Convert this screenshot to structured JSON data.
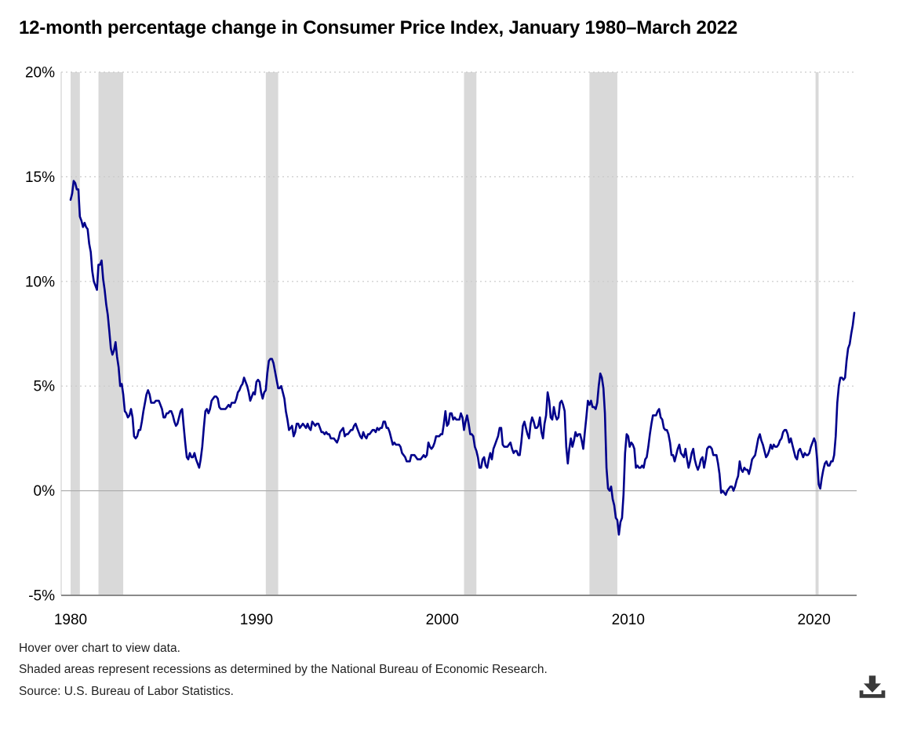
{
  "title": "12-month percentage change in Consumer Price Index, January 1980–March 2022",
  "notes": [
    "Hover over chart to view data.",
    "Shaded areas represent recessions as determined by the National Bureau of Economic Research.",
    "Source: U.S. Bureau of Labor Statistics."
  ],
  "colors": {
    "line": "#00008b",
    "recession": "#d9d9d9",
    "grid": "#c9c9c9",
    "zero_line": "#b0b0b0",
    "axis": "#8a8a8a",
    "text": "#000000",
    "icon": "#3a3a3a"
  },
  "chart_data": {
    "type": "line",
    "title": "12-month percentage change in Consumer Price Index, January 1980–March 2022",
    "start_year": 1980,
    "start_month": 1,
    "end_year": 2022,
    "end_month": 3,
    "ylim": [
      -5,
      20
    ],
    "unit": "percent",
    "grid": "dotted-horizontal",
    "legend_position": "none",
    "y_ticks": [
      {
        "label": "20%",
        "value": 20,
        "style": "dotted"
      },
      {
        "label": "15%",
        "value": 15,
        "style": "dotted"
      },
      {
        "label": "10%",
        "value": 10,
        "style": "dotted"
      },
      {
        "label": "5%",
        "value": 5,
        "style": "dotted"
      },
      {
        "label": "0%",
        "value": 0,
        "style": "solid"
      },
      {
        "label": "-5%",
        "value": -5,
        "style": "axis"
      }
    ],
    "x_ticks": [
      1980,
      1990,
      2000,
      2010,
      2020
    ],
    "recessions": [
      {
        "start": "1980-01",
        "end": "1980-07"
      },
      {
        "start": "1981-07",
        "end": "1982-11"
      },
      {
        "start": "1990-07",
        "end": "1991-03"
      },
      {
        "start": "2001-03",
        "end": "2001-11"
      },
      {
        "start": "2007-12",
        "end": "2009-06"
      },
      {
        "start": "2020-02",
        "end": "2020-04"
      }
    ],
    "series": [
      {
        "name": "12-month percent change, Consumer Price Index",
        "data": [
          {
            "year": 1980,
            "values": [
              13.9,
              14.2,
              14.8,
              14.7,
              14.4,
              14.4,
              13.1,
              12.9,
              12.6,
              12.8,
              12.6,
              12.5
            ]
          },
          {
            "year": 1981,
            "values": [
              11.8,
              11.4,
              10.5,
              10.0,
              9.8,
              9.6,
              10.8,
              10.8,
              11.0,
              10.1,
              9.6,
              8.9
            ]
          },
          {
            "year": 1982,
            "values": [
              8.4,
              7.6,
              6.8,
              6.5,
              6.7,
              7.1,
              6.4,
              5.9,
              5.0,
              5.1,
              4.6,
              3.8
            ]
          },
          {
            "year": 1983,
            "values": [
              3.7,
              3.5,
              3.6,
              3.9,
              3.5,
              2.6,
              2.5,
              2.6,
              2.9,
              2.9,
              3.3,
              3.8
            ]
          },
          {
            "year": 1984,
            "values": [
              4.2,
              4.6,
              4.8,
              4.6,
              4.2,
              4.2,
              4.2,
              4.3,
              4.3,
              4.3,
              4.1,
              3.9
            ]
          },
          {
            "year": 1985,
            "values": [
              3.5,
              3.5,
              3.7,
              3.7,
              3.8,
              3.8,
              3.6,
              3.3,
              3.1,
              3.2,
              3.5,
              3.8
            ]
          },
          {
            "year": 1986,
            "values": [
              3.9,
              3.1,
              2.3,
              1.6,
              1.5,
              1.8,
              1.6,
              1.6,
              1.8,
              1.5,
              1.3,
              1.1
            ]
          },
          {
            "year": 1987,
            "values": [
              1.5,
              2.1,
              3.0,
              3.8,
              3.9,
              3.7,
              3.9,
              4.3,
              4.4,
              4.5,
              4.5,
              4.4
            ]
          },
          {
            "year": 1988,
            "values": [
              4.0,
              3.9,
              3.9,
              3.9,
              3.9,
              4.0,
              4.1,
              4.0,
              4.2,
              4.2,
              4.2,
              4.4
            ]
          },
          {
            "year": 1989,
            "values": [
              4.7,
              4.8,
              5.0,
              5.1,
              5.4,
              5.2,
              5.0,
              4.7,
              4.3,
              4.5,
              4.7,
              4.6
            ]
          },
          {
            "year": 1990,
            "values": [
              5.2,
              5.3,
              5.2,
              4.7,
              4.4,
              4.7,
              4.8,
              5.6,
              6.2,
              6.3,
              6.3,
              6.1
            ]
          },
          {
            "year": 1991,
            "values": [
              5.7,
              5.3,
              4.9,
              4.9,
              5.0,
              4.7,
              4.4,
              3.8,
              3.4,
              2.9,
              3.0,
              3.1
            ]
          },
          {
            "year": 1992,
            "values": [
              2.6,
              2.8,
              3.2,
              3.2,
              3.0,
              3.1,
              3.2,
              3.1,
              3.0,
              3.2,
              3.0,
              2.9
            ]
          },
          {
            "year": 1993,
            "values": [
              3.3,
              3.2,
              3.1,
              3.2,
              3.2,
              3.0,
              2.8,
              2.8,
              2.7,
              2.8,
              2.7,
              2.7
            ]
          },
          {
            "year": 1994,
            "values": [
              2.5,
              2.5,
              2.5,
              2.4,
              2.3,
              2.5,
              2.8,
              2.9,
              3.0,
              2.6,
              2.7,
              2.7
            ]
          },
          {
            "year": 1995,
            "values": [
              2.8,
              2.9,
              2.9,
              3.1,
              3.2,
              3.0,
              2.8,
              2.6,
              2.5,
              2.8,
              2.6,
              2.5
            ]
          },
          {
            "year": 1996,
            "values": [
              2.7,
              2.7,
              2.8,
              2.9,
              2.9,
              2.8,
              3.0,
              2.9,
              3.0,
              3.0,
              3.3,
              3.3
            ]
          },
          {
            "year": 1997,
            "values": [
              3.0,
              3.0,
              2.8,
              2.5,
              2.2,
              2.3,
              2.2,
              2.2,
              2.2,
              2.1,
              1.8,
              1.7
            ]
          },
          {
            "year": 1998,
            "values": [
              1.6,
              1.4,
              1.4,
              1.4,
              1.7,
              1.7,
              1.7,
              1.6,
              1.5,
              1.5,
              1.5,
              1.6
            ]
          },
          {
            "year": 1999,
            "values": [
              1.7,
              1.6,
              1.7,
              2.3,
              2.1,
              2.0,
              2.1,
              2.3,
              2.6,
              2.6,
              2.6,
              2.7
            ]
          },
          {
            "year": 2000,
            "values": [
              2.7,
              3.2,
              3.8,
              3.1,
              3.2,
              3.7,
              3.7,
              3.4,
              3.5,
              3.4,
              3.4,
              3.4
            ]
          },
          {
            "year": 2001,
            "values": [
              3.7,
              3.5,
              2.9,
              3.3,
              3.6,
              3.2,
              2.7,
              2.7,
              2.6,
              2.1,
              1.9,
              1.6
            ]
          },
          {
            "year": 2002,
            "values": [
              1.1,
              1.1,
              1.5,
              1.6,
              1.2,
              1.1,
              1.5,
              1.8,
              1.5,
              2.0,
              2.2,
              2.4
            ]
          },
          {
            "year": 2003,
            "values": [
              2.6,
              3.0,
              3.0,
              2.2,
              2.1,
              2.1,
              2.1,
              2.2,
              2.3,
              2.0,
              1.8,
              1.9
            ]
          },
          {
            "year": 2004,
            "values": [
              1.9,
              1.7,
              1.7,
              2.3,
              3.1,
              3.3,
              3.0,
              2.7,
              2.5,
              3.2,
              3.5,
              3.3
            ]
          },
          {
            "year": 2005,
            "values": [
              3.0,
              3.0,
              3.1,
              3.5,
              2.8,
              2.5,
              3.2,
              3.6,
              4.7,
              4.3,
              3.5,
              3.4
            ]
          },
          {
            "year": 2006,
            "values": [
              4.0,
              3.6,
              3.4,
              3.5,
              4.2,
              4.3,
              4.1,
              3.8,
              2.1,
              1.3,
              2.0,
              2.5
            ]
          },
          {
            "year": 2007,
            "values": [
              2.1,
              2.4,
              2.8,
              2.6,
              2.7,
              2.7,
              2.4,
              2.0,
              2.8,
              3.5,
              4.3,
              4.1
            ]
          },
          {
            "year": 2008,
            "values": [
              4.3,
              4.0,
              4.0,
              3.9,
              4.2,
              5.0,
              5.6,
              5.4,
              4.9,
              3.7,
              1.1,
              0.1
            ]
          },
          {
            "year": 2009,
            "values": [
              0.0,
              0.2,
              -0.4,
              -0.7,
              -1.3,
              -1.4,
              -2.1,
              -1.5,
              -1.3,
              -0.2,
              1.8,
              2.7
            ]
          },
          {
            "year": 2010,
            "values": [
              2.6,
              2.1,
              2.3,
              2.2,
              2.0,
              1.1,
              1.2,
              1.1,
              1.1,
              1.2,
              1.1,
              1.5
            ]
          },
          {
            "year": 2011,
            "values": [
              1.6,
              2.1,
              2.7,
              3.2,
              3.6,
              3.6,
              3.6,
              3.8,
              3.9,
              3.5,
              3.4,
              3.0
            ]
          },
          {
            "year": 2012,
            "values": [
              2.9,
              2.9,
              2.7,
              2.3,
              1.7,
              1.7,
              1.4,
              1.7,
              2.0,
              2.2,
              1.8,
              1.7
            ]
          },
          {
            "year": 2013,
            "values": [
              1.6,
              2.0,
              1.5,
              1.1,
              1.4,
              1.8,
              2.0,
              1.5,
              1.2,
              1.0,
              1.2,
              1.5
            ]
          },
          {
            "year": 2014,
            "values": [
              1.6,
              1.1,
              1.5,
              2.0,
              2.1,
              2.1,
              2.0,
              1.7,
              1.7,
              1.7,
              1.3,
              0.8
            ]
          },
          {
            "year": 2015,
            "values": [
              -0.1,
              0.0,
              -0.1,
              -0.2,
              0.0,
              0.1,
              0.2,
              0.2,
              0.0,
              0.2,
              0.5,
              0.7
            ]
          },
          {
            "year": 2016,
            "values": [
              1.4,
              1.0,
              0.9,
              1.1,
              1.0,
              1.0,
              0.8,
              1.1,
              1.5,
              1.6,
              1.7,
              2.1
            ]
          },
          {
            "year": 2017,
            "values": [
              2.5,
              2.7,
              2.4,
              2.2,
              1.9,
              1.6,
              1.7,
              1.9,
              2.2,
              2.0,
              2.2,
              2.1
            ]
          },
          {
            "year": 2018,
            "values": [
              2.1,
              2.2,
              2.4,
              2.5,
              2.8,
              2.9,
              2.9,
              2.7,
              2.3,
              2.5,
              2.2,
              1.9
            ]
          },
          {
            "year": 2019,
            "values": [
              1.6,
              1.5,
              1.9,
              2.0,
              1.8,
              1.6,
              1.8,
              1.7,
              1.7,
              1.8,
              2.1,
              2.3
            ]
          },
          {
            "year": 2020,
            "values": [
              2.5,
              2.3,
              1.5,
              0.3,
              0.1,
              0.6,
              1.0,
              1.3,
              1.4,
              1.2,
              1.2,
              1.4
            ]
          },
          {
            "year": 2021,
            "values": [
              1.4,
              1.7,
              2.6,
              4.2,
              5.0,
              5.4,
              5.4,
              5.3,
              5.4,
              6.2,
              6.8,
              7.0
            ]
          },
          {
            "year": 2022,
            "values": [
              7.5,
              7.9,
              8.5
            ]
          }
        ]
      }
    ]
  }
}
